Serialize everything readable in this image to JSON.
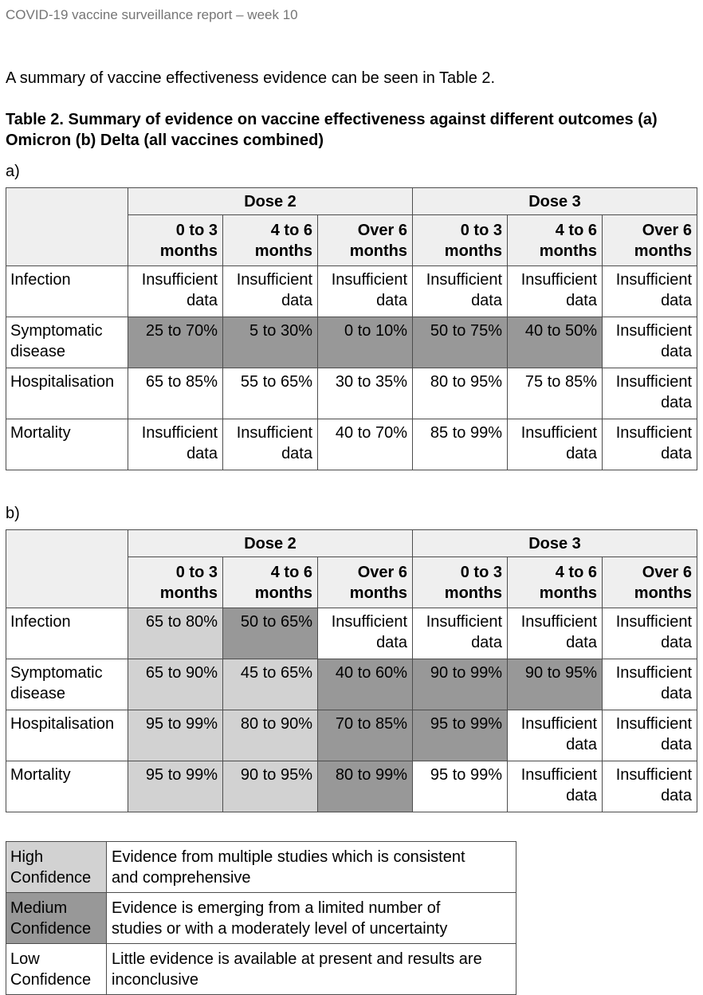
{
  "page_header": "COVID-19 vaccine surveillance report – week 10",
  "intro": "A summary of vaccine effectiveness evidence can be seen in Table 2.",
  "caption": "Table 2. Summary of evidence on vaccine effectiveness against different outcomes (a) Omicron (b) Delta (all vaccines combined)",
  "confidence_colors": {
    "high": "#d2d2d2",
    "medium": "#989898",
    "low": "#ffffff",
    "header_bg": "#efefef",
    "border": "#4d4d4d",
    "muted_text": "#757575"
  },
  "tables": [
    {
      "id": "table-a",
      "label": "a)",
      "dose_groups": [
        "Dose 2",
        "Dose 3"
      ],
      "period_columns": [
        "0 to 3 months",
        "4 to 6 months",
        "Over 6 months",
        "0 to 3 months",
        "4 to 6 months",
        "Over 6 months"
      ],
      "rows": [
        {
          "outcome": "Infection",
          "cells": [
            {
              "value": "Insufficient data",
              "confidence": "low"
            },
            {
              "value": "Insufficient data",
              "confidence": "low"
            },
            {
              "value": "Insufficient data",
              "confidence": "low"
            },
            {
              "value": "Insufficient data",
              "confidence": "low"
            },
            {
              "value": "Insufficient data",
              "confidence": "low"
            },
            {
              "value": "Insufficient data",
              "confidence": "low"
            }
          ]
        },
        {
          "outcome": "Symptomatic disease",
          "cells": [
            {
              "value": "25 to 70%",
              "confidence": "medium"
            },
            {
              "value": "5 to 30%",
              "confidence": "medium"
            },
            {
              "value": "0 to 10%",
              "confidence": "medium"
            },
            {
              "value": "50 to 75%",
              "confidence": "medium"
            },
            {
              "value": "40 to 50%",
              "confidence": "medium"
            },
            {
              "value": "Insufficient data",
              "confidence": "low"
            }
          ]
        },
        {
          "outcome": "Hospitalisation",
          "cells": [
            {
              "value": "65 to 85%",
              "confidence": "low"
            },
            {
              "value": "55 to 65%",
              "confidence": "low"
            },
            {
              "value": "30 to 35%",
              "confidence": "low"
            },
            {
              "value": "80 to 95%",
              "confidence": "low"
            },
            {
              "value": "75 to 85%",
              "confidence": "low"
            },
            {
              "value": "Insufficient data",
              "confidence": "low"
            }
          ]
        },
        {
          "outcome": "Mortality",
          "cells": [
            {
              "value": "Insufficient data",
              "confidence": "low"
            },
            {
              "value": "Insufficient data",
              "confidence": "low"
            },
            {
              "value": "40 to 70%",
              "confidence": "low"
            },
            {
              "value": "85 to 99%",
              "confidence": "low"
            },
            {
              "value": "Insufficient data",
              "confidence": "low"
            },
            {
              "value": "Insufficient data",
              "confidence": "low"
            }
          ]
        }
      ]
    },
    {
      "id": "table-b",
      "label": "b)",
      "dose_groups": [
        "Dose 2",
        "Dose 3"
      ],
      "period_columns": [
        "0 to 3 months",
        "4 to 6 months",
        "Over 6 months",
        "0 to 3 months",
        "4 to 6 months",
        "Over 6 months"
      ],
      "rows": [
        {
          "outcome": "Infection",
          "cells": [
            {
              "value": "65 to 80%",
              "confidence": "high"
            },
            {
              "value": "50 to 65%",
              "confidence": "medium"
            },
            {
              "value": "Insufficient data",
              "confidence": "low"
            },
            {
              "value": "Insufficient data",
              "confidence": "low"
            },
            {
              "value": "Insufficient data",
              "confidence": "low"
            },
            {
              "value": "Insufficient data",
              "confidence": "low"
            }
          ]
        },
        {
          "outcome": "Symptomatic disease",
          "cells": [
            {
              "value": "65 to 90%",
              "confidence": "high"
            },
            {
              "value": "45 to 65%",
              "confidence": "high"
            },
            {
              "value": "40 to 60%",
              "confidence": "medium"
            },
            {
              "value": "90 to 99%",
              "confidence": "medium"
            },
            {
              "value": "90 to 95%",
              "confidence": "medium"
            },
            {
              "value": "Insufficient data",
              "confidence": "low"
            }
          ]
        },
        {
          "outcome": "Hospitalisation",
          "cells": [
            {
              "value": "95 to 99%",
              "confidence": "high"
            },
            {
              "value": "80 to 90%",
              "confidence": "high"
            },
            {
              "value": "70 to 85%",
              "confidence": "medium"
            },
            {
              "value": "95 to 99%",
              "confidence": "medium"
            },
            {
              "value": "Insufficient data",
              "confidence": "low"
            },
            {
              "value": "Insufficient data",
              "confidence": "low"
            }
          ]
        },
        {
          "outcome": "Mortality",
          "cells": [
            {
              "value": "95 to 99%",
              "confidence": "high"
            },
            {
              "value": "90 to 95%",
              "confidence": "high"
            },
            {
              "value": "80 to 99%",
              "confidence": "medium"
            },
            {
              "value": "95 to 99%",
              "confidence": "low"
            },
            {
              "value": "Insufficient data",
              "confidence": "low"
            },
            {
              "value": "Insufficient data",
              "confidence": "low"
            }
          ]
        }
      ]
    }
  ],
  "legend": {
    "rows": [
      {
        "label": "High Confidence",
        "confidence": "high",
        "description": "Evidence from multiple studies which is consistent and comprehensive"
      },
      {
        "label": "Medium Confidence",
        "confidence": "medium",
        "description": "Evidence is emerging from a limited number of studies or with a moderately level of uncertainty"
      },
      {
        "label": "Low Confidence",
        "confidence": "low",
        "description": "Little evidence is available at present and results are inconclusive"
      }
    ]
  }
}
